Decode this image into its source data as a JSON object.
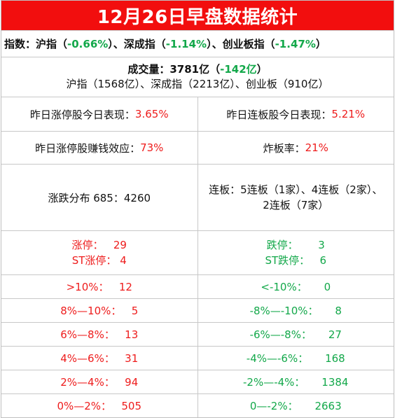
{
  "title": "12月26日早盘数据统计",
  "indices": {
    "prefix": "指数：沪指（",
    "sh_change": "-0.66%",
    "mid1": "）、深成指（",
    "sz_change": "-1.14%",
    "mid2": "）、创业板指（",
    "cy_change": "-1.47%",
    "suffix": "）"
  },
  "volume": {
    "label": "成交量：3781亿（",
    "change": "-142亿",
    "label_end": "）",
    "breakdown": "沪指（1568亿）、深成指（2213亿）、创业板（910亿）"
  },
  "stats": {
    "limit_up_today_label": "昨日涨停股今日表现：",
    "limit_up_today_value": "3.65%",
    "consecutive_today_label": "昨日连板股今日表现：",
    "consecutive_today_value": "5.21%",
    "money_effect_label": "昨日涨停股赚钱效应：",
    "money_effect_value": "73%",
    "broken_rate_label": "炸板率：",
    "broken_rate_value": "21%",
    "distribution": "涨跌分布 685：4260",
    "consecutive_line1": "连板：5连板（1家）、4连板（2家）、",
    "consecutive_line2": "2连板（7家）"
  },
  "limits": {
    "up_label": "涨停：",
    "up_value": "29",
    "st_up_label": "ST涨停：",
    "st_up_value": "4",
    "down_label": "跌停：",
    "down_value": "3",
    "st_down_label": "ST跌停：",
    "st_down_value": "6"
  },
  "ranges": [
    {
      "up_label": ">10%：",
      "up_value": "12",
      "down_label": "<-10%：",
      "down_value": "0"
    },
    {
      "up_label": "8%—10%：",
      "up_value": "5",
      "down_label": "-8%—-10%：",
      "down_value": "8"
    },
    {
      "up_label": "6%—8%：",
      "up_value": "13",
      "down_label": "-6%—-8%：",
      "down_value": "27"
    },
    {
      "up_label": "4%—6%：",
      "up_value": "31",
      "down_label": "-4%—-6%：",
      "down_value": "168"
    },
    {
      "up_label": "2%—4%：",
      "up_value": "94",
      "down_label": "-2%—-4%：",
      "down_value": "1384"
    },
    {
      "up_label": "0%—2%：",
      "up_value": "505",
      "down_label": "0—-2%：",
      "down_value": "2663"
    }
  ],
  "colors": {
    "title_bg": "#f20e0e",
    "up": "#ee1c1c",
    "down": "#13a84a"
  }
}
